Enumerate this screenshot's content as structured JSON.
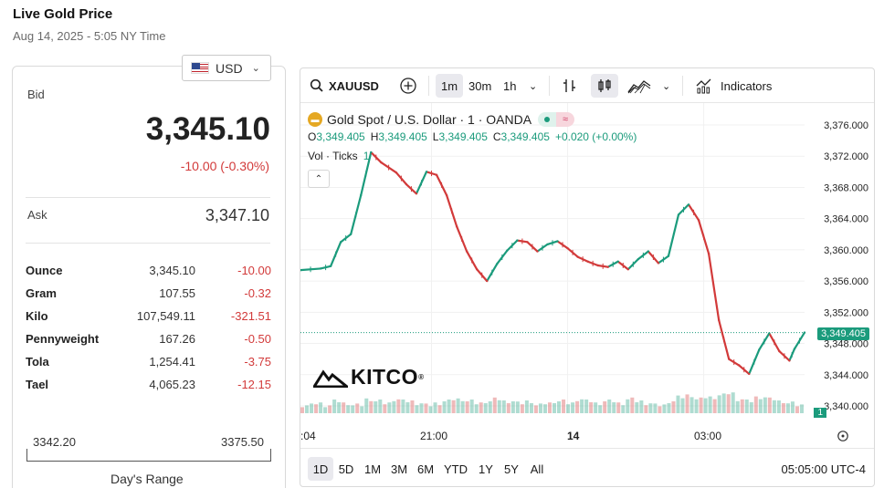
{
  "page": {
    "title": "Live Gold Price",
    "subtitle": "Aug 14, 2025 - 5:05 NY Time"
  },
  "currency": {
    "selected": "USD",
    "icon": "us-flag-icon"
  },
  "quote": {
    "bid_label": "Bid",
    "bid": "3,345.10",
    "change": "-10.00 (-0.30%)",
    "ask_label": "Ask",
    "ask": "3,347.10"
  },
  "units": [
    {
      "name": "Ounce",
      "price": "3,345.10",
      "change": "-10.00"
    },
    {
      "name": "Gram",
      "price": "107.55",
      "change": "-0.32"
    },
    {
      "name": "Kilo",
      "price": "107,549.11",
      "change": "-321.51"
    },
    {
      "name": "Pennyweight",
      "price": "167.26",
      "change": "-0.50"
    },
    {
      "name": "Tola",
      "price": "1,254.41",
      "change": "-3.75"
    },
    {
      "name": "Tael",
      "price": "4,065.23",
      "change": "-12.15"
    }
  ],
  "days_range": {
    "low": "3342.20",
    "high": "3375.50",
    "label": "Day's Range"
  },
  "colors": {
    "up": "#1b9b7c",
    "down": "#d23a3a",
    "gold": "#e5a823"
  },
  "chart": {
    "toolbar": {
      "symbol": "XAUUSD",
      "intervals": [
        "1m",
        "30m",
        "1h"
      ],
      "active_interval": "1m",
      "indicators_label": "Indicators"
    },
    "legend": {
      "title": "Gold Spot / U.S. Dollar · 1 · OANDA",
      "o_label": "O",
      "o": "3,349.405",
      "h_label": "H",
      "h": "3,349.405",
      "l_label": "L",
      "l": "3,349.405",
      "c_label": "C",
      "c": "3,349.405",
      "delta": "+0.020 (+0.00%)",
      "volume_label": "Vol · Ticks",
      "volume_value": "1"
    },
    "watermark": "KITCO",
    "last_price_tag": "3,349.405",
    "volume_tag": "1",
    "ranges": [
      "1D",
      "5D",
      "1M",
      "3M",
      "6M",
      "YTD",
      "1Y",
      "5Y",
      "All"
    ],
    "active_range": "1D",
    "clock": "05:05:00 UTC-4"
  },
  "chart_data": {
    "type": "line",
    "title": "Gold Spot / U.S. Dollar · 1 · OANDA",
    "x_ticks": [
      ":04",
      "21:00",
      "14",
      "03:00"
    ],
    "y_ticks": [
      "3,376.000",
      "3,372.000",
      "3,368.000",
      "3,364.000",
      "3,360.000",
      "3,356.000",
      "3,352.000",
      "3,348.000",
      "3,344.000",
      "3,340.000"
    ],
    "ylim": [
      3338,
      3378
    ],
    "x": [
      0,
      4,
      6,
      8,
      10,
      12,
      14,
      16,
      19,
      21,
      23,
      25,
      27,
      29,
      31,
      33,
      35,
      37,
      39,
      41,
      43,
      45,
      47,
      49,
      51,
      53,
      55,
      57,
      59,
      61,
      63,
      65,
      67,
      69,
      71,
      73,
      75,
      77,
      79,
      81,
      83,
      85,
      87,
      89,
      91,
      93,
      95,
      97,
      98,
      100
    ],
    "values": [
      3357.4,
      3357.6,
      3357.9,
      3361.0,
      3362.0,
      3367.0,
      3372.5,
      3371.2,
      3369.9,
      3368.4,
      3367.2,
      3370.0,
      3369.6,
      3367.0,
      3363.0,
      3359.8,
      3357.5,
      3356.0,
      3358.2,
      3359.9,
      3361.2,
      3361.0,
      3359.8,
      3360.7,
      3361.1,
      3360.2,
      3359.1,
      3358.5,
      3358.0,
      3357.8,
      3358.5,
      3357.5,
      3358.8,
      3359.8,
      3358.3,
      3359.2,
      3364.5,
      3365.8,
      3363.8,
      3359.5,
      3351.0,
      3346.0,
      3345.2,
      3344.1,
      3347.2,
      3349.3,
      3347.0,
      3345.8,
      3347.3,
      3349.4
    ],
    "volume": [
      3,
      4,
      3,
      5,
      4,
      3,
      6,
      5,
      4,
      6,
      5,
      4,
      3,
      4,
      5,
      6,
      5,
      4,
      5,
      6,
      5,
      4,
      5,
      3,
      4,
      5,
      4,
      6,
      5,
      4,
      5,
      4,
      6,
      5,
      4,
      3,
      5,
      7,
      8,
      6,
      7,
      8,
      9,
      6,
      5,
      7,
      6,
      5,
      4,
      3
    ],
    "grid": true
  }
}
